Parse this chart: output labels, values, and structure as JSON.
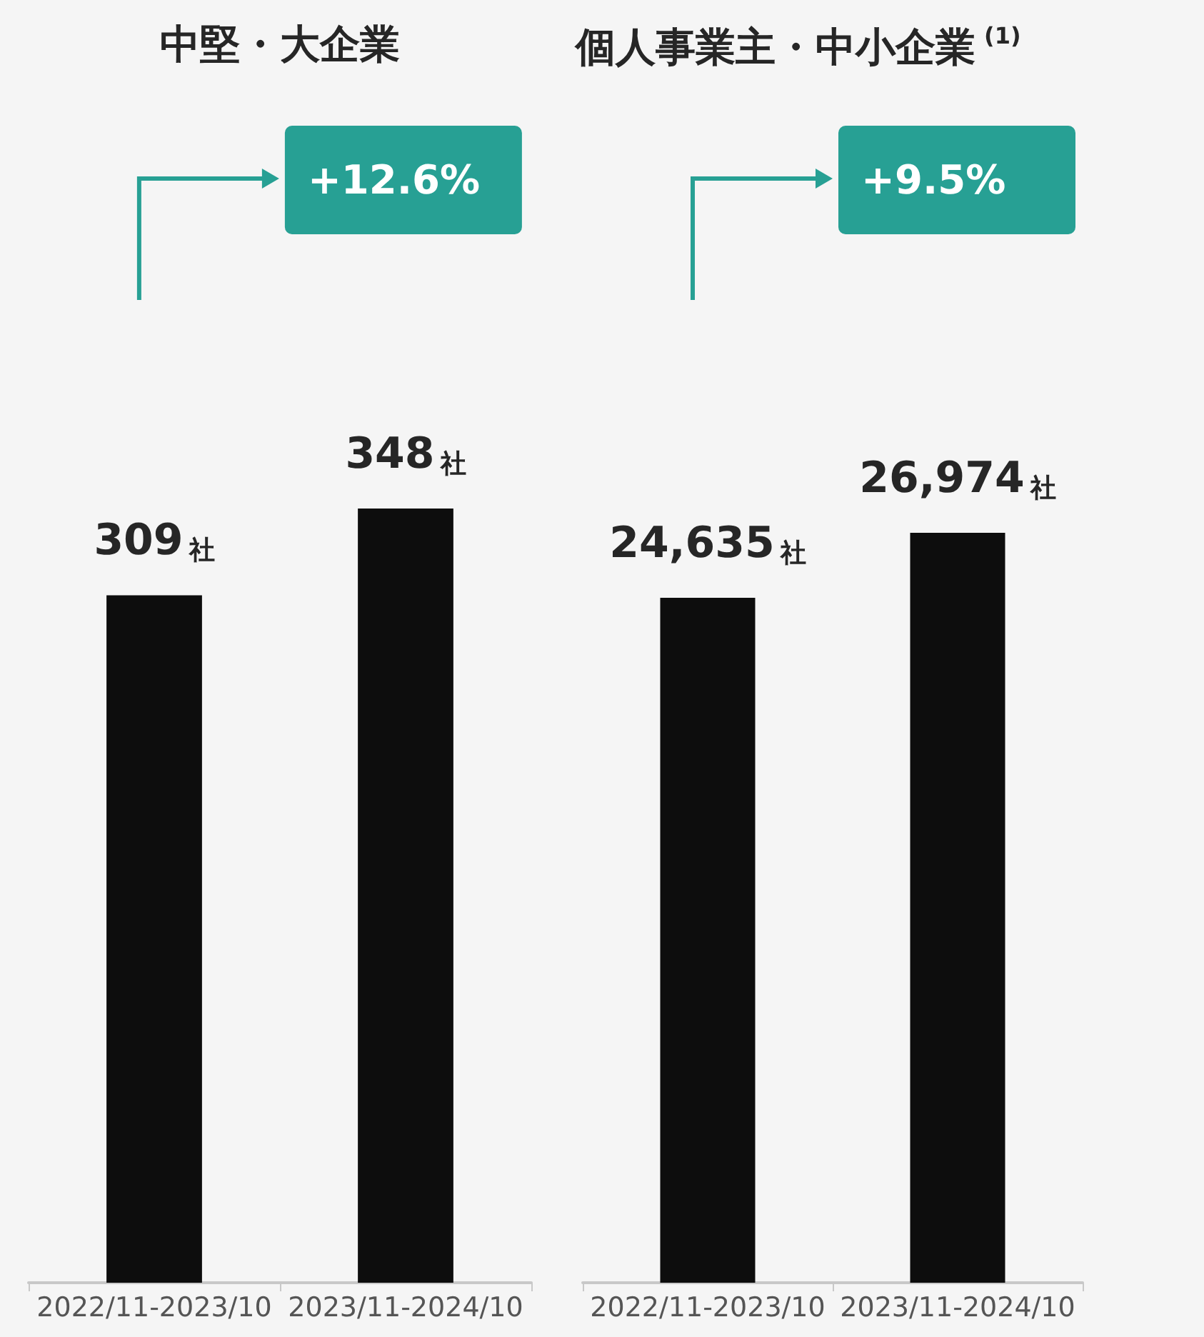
{
  "chart_data": [
    {
      "type": "bar",
      "title": "中堅・大企業",
      "categories": [
        "2022/11-2023/10",
        "2023/11-2024/10"
      ],
      "values": [
        309,
        348
      ],
      "color": "#0d0d0d",
      "value_labels": [
        "309社",
        "348社"
      ],
      "tick_labels": "x",
      "annotations": [
        "+12.6%"
      ]
    },
    {
      "type": "bar",
      "title": "個人事業主・中小企業$^{(1)}$",
      "categories": [
        "2022/11-2023/10",
        "2023/11-2024/10"
      ],
      "values": [
        24635,
        26974
      ],
      "color": "#0d0d0d",
      "value_labels": [
        "24,635社",
        "26,974社"
      ],
      "tick_labels": "x",
      "annotations": [
        "+9.5%"
      ]
    }
  ]
}
